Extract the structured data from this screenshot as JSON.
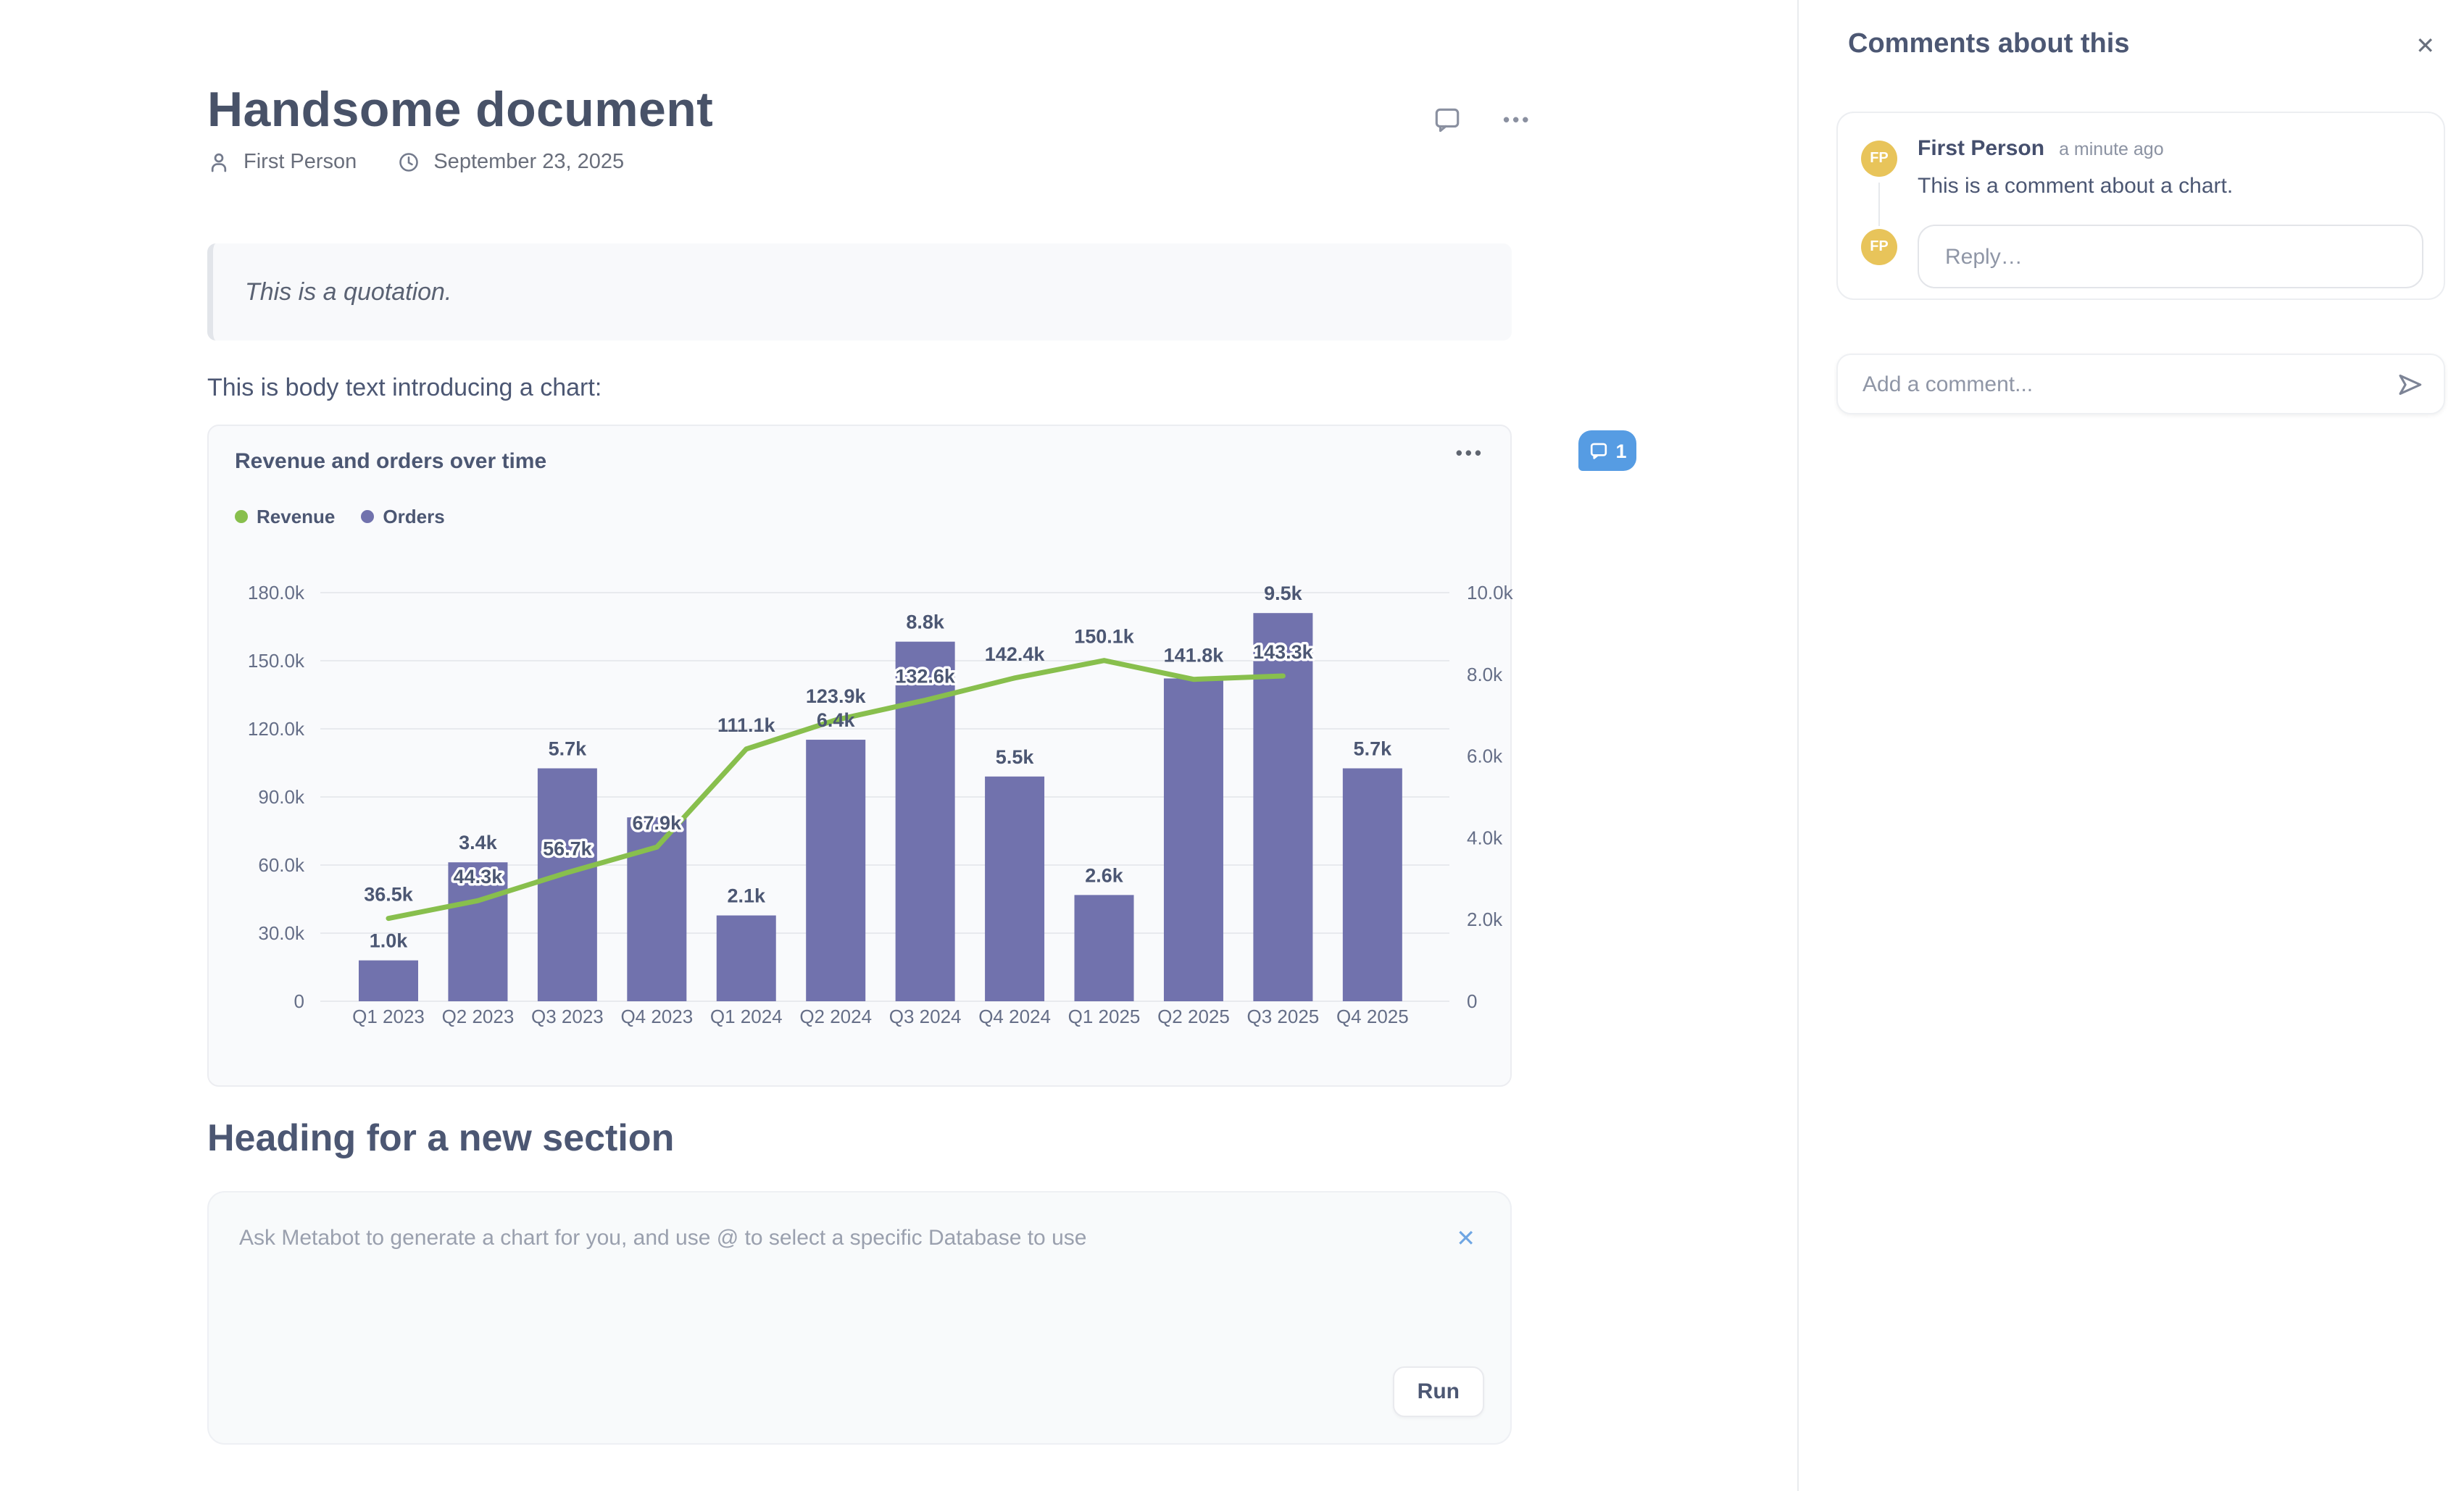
{
  "document": {
    "title": "Handsome document",
    "author": "First Person",
    "date": "September 23, 2025",
    "quote": "This is a quotation.",
    "body_text": "This is body text introducing a chart:",
    "section_heading": "Heading for a new section"
  },
  "chart_card": {
    "title": "Revenue and orders over time",
    "comment_count": "1"
  },
  "chart_data": {
    "type": "combo",
    "title": "Revenue and orders over time",
    "categories": [
      "Q1 2023",
      "Q2 2023",
      "Q3 2023",
      "Q4 2023",
      "Q1 2024",
      "Q2 2024",
      "Q3 2024",
      "Q4 2024",
      "Q1 2025",
      "Q2 2025",
      "Q3 2025",
      "Q4 2025"
    ],
    "series": [
      {
        "name": "Revenue",
        "type": "line",
        "axis": "left",
        "color": "#88BF4D",
        "values": [
          36500,
          44300,
          56700,
          67900,
          111100,
          123900,
          132600,
          142400,
          150100,
          141800,
          143300,
          null
        ],
        "labels": [
          "36.5k",
          "44.3k",
          "56.7k",
          "67.9k",
          "111.1k",
          "123.9k",
          "132.6k",
          "142.4k",
          "150.1k",
          "141.8k",
          "143.3k",
          null
        ],
        "outlined_labels": [
          false,
          true,
          true,
          true,
          false,
          false,
          true,
          false,
          false,
          false,
          true,
          false
        ]
      },
      {
        "name": "Orders",
        "type": "bar",
        "axis": "right",
        "color": "#7172AD",
        "values": [
          1000,
          3400,
          5700,
          4500,
          2100,
          6400,
          8800,
          5500,
          2600,
          7900,
          9500,
          5700
        ],
        "labels": [
          "1.0k",
          "3.4k",
          "5.7k",
          null,
          "2.1k",
          "6.4k",
          "8.8k",
          "5.5k",
          "2.6k",
          null,
          "9.5k",
          "5.7k"
        ]
      }
    ],
    "left_axis": {
      "ticks": [
        "180.0k",
        "150.0k",
        "120.0k",
        "90.0k",
        "60.0k",
        "30.0k",
        "0"
      ],
      "max": 180000,
      "min": 0
    },
    "right_axis": {
      "ticks": [
        "10.0k",
        "8.0k",
        "6.0k",
        "4.0k",
        "2.0k",
        "0"
      ],
      "max": 10000,
      "min": 0
    },
    "grid": true,
    "legend_position": "top-left",
    "label_color": "#4C5773",
    "axis_color": "#656E87",
    "grid_color": "#E8EAEE"
  },
  "metabot": {
    "placeholder": "Ask Metabot to generate a chart for you, and use @ to select a specific Database to use",
    "run_label": "Run"
  },
  "comments_panel": {
    "title": "Comments about this",
    "comment": {
      "author": "First Person",
      "initials": "FP",
      "time": "a minute ago",
      "text": "This is a comment about a chart.",
      "reply_placeholder": "Reply…"
    },
    "add_comment_placeholder": "Add a comment..."
  },
  "icons": {
    "ellipsis": "•••",
    "close": "✕"
  },
  "colors": {
    "ink": "#4C5773",
    "purple": "#7172AD",
    "green": "#88BF4D",
    "badge_blue": "#569CE3",
    "avatar_gold": "#E8C45A"
  }
}
